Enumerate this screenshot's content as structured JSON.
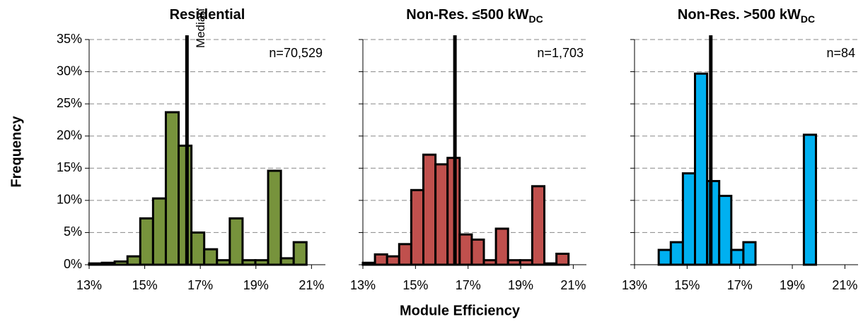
{
  "x_label": "Module Efficiency",
  "y_label": "Frequency",
  "chart_data": [
    {
      "type": "histogram",
      "title": "Residential",
      "annotation": "n=70,529",
      "median_label": "Median",
      "median": 16.52,
      "color": "#77933c",
      "bins": [
        13,
        13.46,
        13.92,
        14.38,
        14.84,
        15.3,
        15.76,
        16.22,
        16.68,
        17.14,
        17.6,
        18.06,
        18.52,
        18.98,
        19.44,
        19.9,
        20.36,
        20.82
      ],
      "values": [
        0.2,
        0.3,
        0.5,
        1.3,
        7.2,
        10.3,
        23.7,
        18.5,
        5.0,
        2.4,
        0.7,
        7.2,
        0.7,
        0.7,
        14.6,
        1.0,
        3.5
      ],
      "xlim": [
        13,
        21.5
      ],
      "xticks": [
        {
          "value": 13,
          "label": "13%"
        },
        {
          "value": 15,
          "label": "15%"
        },
        {
          "value": 17,
          "label": "17%"
        },
        {
          "value": 19,
          "label": "19%"
        },
        {
          "value": 21,
          "label": "21%"
        }
      ],
      "ylim": [
        0,
        35
      ],
      "yticks": [
        {
          "value": 0,
          "label": "0%"
        },
        {
          "value": 5,
          "label": "5%"
        },
        {
          "value": 10,
          "label": "10%"
        },
        {
          "value": 15,
          "label": "15%"
        },
        {
          "value": 20,
          "label": "20%"
        },
        {
          "value": 25,
          "label": "25%"
        },
        {
          "value": 30,
          "label": "30%"
        },
        {
          "value": 35,
          "label": "35%"
        }
      ],
      "grid": true
    },
    {
      "type": "histogram",
      "title": "Non-Res. ≤500 kW",
      "title_sub": "DC",
      "annotation": "n=1,703",
      "median": 16.5,
      "color": "#c0504d",
      "bins": [
        13,
        13.46,
        13.92,
        14.38,
        14.84,
        15.3,
        15.76,
        16.22,
        16.68,
        17.14,
        17.6,
        18.06,
        18.52,
        18.98,
        19.44,
        19.9,
        20.36,
        20.82
      ],
      "values": [
        0.3,
        1.6,
        1.3,
        3.2,
        11.6,
        17.1,
        15.6,
        16.6,
        4.7,
        3.9,
        0.7,
        5.6,
        0.7,
        0.7,
        12.2,
        0.2,
        1.7
      ],
      "xlim": [
        13,
        21.5
      ],
      "xticks": [
        {
          "value": 13,
          "label": "13%"
        },
        {
          "value": 15,
          "label": "15%"
        },
        {
          "value": 17,
          "label": "17%"
        },
        {
          "value": 19,
          "label": "19%"
        },
        {
          "value": 21,
          "label": "21%"
        }
      ],
      "ylim": [
        0,
        35
      ],
      "yticks": [
        0,
        5,
        10,
        15,
        20,
        25,
        30,
        35
      ],
      "grid": true
    },
    {
      "type": "histogram",
      "title": "Non-Res. >500 kW",
      "title_sub": "DC",
      "annotation": "n=84",
      "median": 15.9,
      "color": "#00b0f0",
      "bins": [
        13,
        13.46,
        13.92,
        14.38,
        14.84,
        15.3,
        15.76,
        16.22,
        16.68,
        17.14,
        17.6,
        18.06,
        18.52,
        18.98,
        19.44,
        19.9,
        20.36,
        20.82
      ],
      "values": [
        0,
        0,
        2.3,
        3.5,
        14.2,
        29.7,
        13.0,
        10.7,
        2.3,
        3.5,
        0,
        0,
        0,
        0,
        20.2,
        0,
        0
      ],
      "xlim": [
        13,
        21.5
      ],
      "xticks": [
        {
          "value": 13,
          "label": "13%"
        },
        {
          "value": 15,
          "label": "15%"
        },
        {
          "value": 17,
          "label": "17%"
        },
        {
          "value": 19,
          "label": "19%"
        },
        {
          "value": 21,
          "label": "21%"
        }
      ],
      "ylim": [
        0,
        35
      ],
      "yticks": [
        0,
        5,
        10,
        15,
        20,
        25,
        30,
        35
      ],
      "grid": true
    }
  ]
}
